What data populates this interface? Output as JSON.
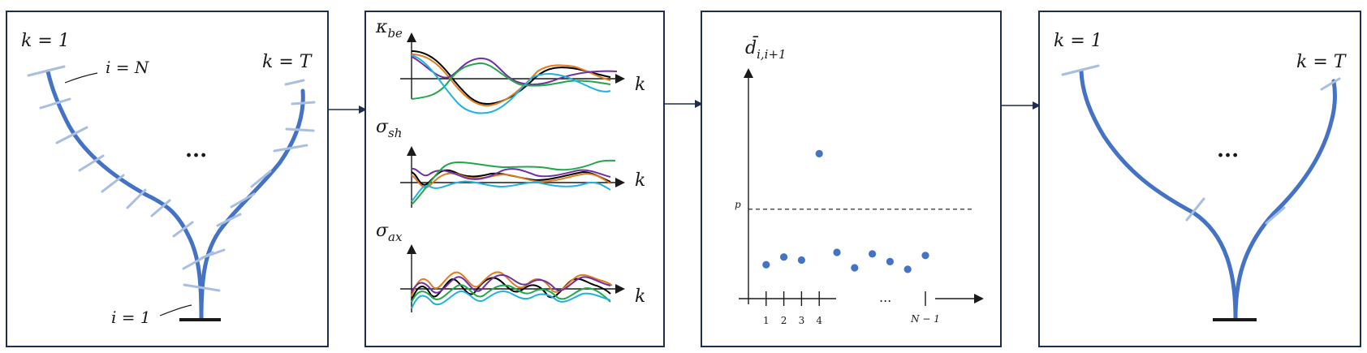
{
  "colors": {
    "panel_border": "#1f2d4f",
    "stem": "#4472c4",
    "tick": "#a9bfe0",
    "point": "#4472c4",
    "series": [
      "#000000",
      "#e07b20",
      "#7030a0",
      "#22a84a",
      "#1fb2e0"
    ]
  },
  "panel1": {
    "k_first": "k = 1",
    "k_last": "k = T",
    "i_top": "i = N",
    "i_bottom": "i = 1",
    "ellipsis": "..."
  },
  "panel2": {
    "plot1_label_base": "κ",
    "plot1_label_sub": "be",
    "plot2_label_base": "σ",
    "plot2_label_sub": "sh",
    "plot3_label_base": "σ",
    "plot3_label_sub": "ax",
    "k_axis": "k"
  },
  "panel3": {
    "y_label_base": "d̄",
    "y_label_sub": "i,i+1",
    "threshold_label": "p",
    "ellipsis": "...",
    "tick_labels": [
      "1",
      "2",
      "3",
      "4"
    ],
    "last_tick_label": "N − 1"
  },
  "panel4": {
    "k_first": "k = 1",
    "k_last": "k = T",
    "ellipsis": "..."
  },
  "chart_data": {
    "type": "scatter",
    "title": "",
    "xlabel": "",
    "ylabel": "d̄_{i,i+1}",
    "threshold_label": "p",
    "points": [
      {
        "x": 1,
        "y": 0.22
      },
      {
        "x": 2,
        "y": 0.27
      },
      {
        "x": 3,
        "y": 0.25
      },
      {
        "x": 4,
        "y": 0.94
      },
      {
        "x": 5,
        "y": 0.3
      },
      {
        "x": 6,
        "y": 0.2
      },
      {
        "x": 7,
        "y": 0.29
      },
      {
        "x": 8,
        "y": 0.24
      },
      {
        "x": 9,
        "y": 0.19
      },
      {
        "x": 10,
        "y": 0.28
      }
    ],
    "threshold": 0.58,
    "ylim": [
      0,
      1.45
    ],
    "xlim": [
      0,
      11.5
    ]
  }
}
